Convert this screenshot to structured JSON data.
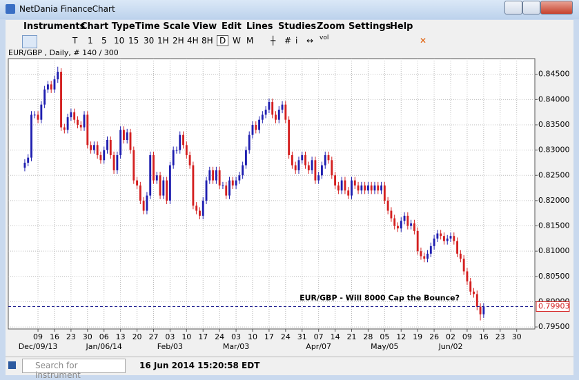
{
  "window": {
    "title": "NetDania FinanceChart"
  },
  "menu": [
    "Instruments",
    "Chart Type",
    "Time Scale",
    "View",
    "Edit",
    "Lines",
    "Studies",
    "Zoom",
    "Settings",
    "Help"
  ],
  "toolbar": {
    "timeframes": [
      "T",
      "1",
      "5",
      "10",
      "15",
      "30",
      "1H",
      "2H",
      "4H",
      "8H",
      "D",
      "W",
      "M"
    ],
    "active": "D",
    "info": "i",
    "volume": "vol"
  },
  "status": {
    "search_placeholder": "Search for instrument",
    "timestamp": "16 Jun 2014 15:20:58 EDT"
  },
  "chart_data": {
    "type": "candlestick",
    "title": "EUR/GBP , Daily, # 140 / 300",
    "annotation": "EUR/GBP - Will 8000 Cap  the Bounce?",
    "up_color": "#1f1fb0",
    "down_color": "#d42020",
    "grid": true,
    "xlim": [
      -5,
      154.5
    ],
    "ylim": [
      0.7946,
      0.8481
    ],
    "yticks": [
      {
        "value": 0.795,
        "label": "0.79500"
      },
      {
        "value": 0.8,
        "label": "0.80000"
      },
      {
        "value": 0.805,
        "label": "0.80500"
      },
      {
        "value": 0.81,
        "label": "0.81000"
      },
      {
        "value": 0.815,
        "label": "0.81500"
      },
      {
        "value": 0.82,
        "label": "0.82000"
      },
      {
        "value": 0.825,
        "label": "0.82500"
      },
      {
        "value": 0.83,
        "label": "0.83000"
      },
      {
        "value": 0.835,
        "label": "0.83500"
      },
      {
        "value": 0.84,
        "label": "0.84000"
      },
      {
        "value": 0.845,
        "label": "0.84500"
      }
    ],
    "last_value": {
      "value": 0.79903,
      "label": "0.79903"
    },
    "xticks": [
      {
        "value": 4,
        "label": "09"
      },
      {
        "value": 9,
        "label": "16"
      },
      {
        "value": 14,
        "label": "23"
      },
      {
        "value": 19,
        "label": "30"
      },
      {
        "value": 24,
        "label": "06"
      },
      {
        "value": 29,
        "label": "13"
      },
      {
        "value": 34,
        "label": "20"
      },
      {
        "value": 39,
        "label": "27"
      },
      {
        "value": 44,
        "label": "03"
      },
      {
        "value": 49,
        "label": "10"
      },
      {
        "value": 54,
        "label": "17"
      },
      {
        "value": 59,
        "label": "24"
      },
      {
        "value": 64,
        "label": "03"
      },
      {
        "value": 69,
        "label": "10"
      },
      {
        "value": 74,
        "label": "17"
      },
      {
        "value": 79,
        "label": "24"
      },
      {
        "value": 84,
        "label": "31"
      },
      {
        "value": 89,
        "label": "07"
      },
      {
        "value": 94,
        "label": "14"
      },
      {
        "value": 99,
        "label": "21"
      },
      {
        "value": 104,
        "label": "28"
      },
      {
        "value": 109,
        "label": "05"
      },
      {
        "value": 114,
        "label": "12"
      },
      {
        "value": 119,
        "label": "19"
      },
      {
        "value": 124,
        "label": "26"
      },
      {
        "value": 129,
        "label": "02"
      },
      {
        "value": 134,
        "label": "09"
      },
      {
        "value": 139,
        "label": "16"
      },
      {
        "value": 144,
        "label": "23"
      },
      {
        "value": 149,
        "label": "30"
      }
    ],
    "month_labels": [
      {
        "value": 4,
        "label": "Dec/09/13"
      },
      {
        "value": 24,
        "label": "Jan/06/14"
      },
      {
        "value": 44,
        "label": "Feb/03"
      },
      {
        "value": 64,
        "label": "Mar/03"
      },
      {
        "value": 89,
        "label": "Apr/07"
      },
      {
        "value": 109,
        "label": "May/05"
      },
      {
        "value": 129,
        "label": "Jun/02"
      }
    ],
    "candles": [
      [
        0.8265,
        0.8282,
        0.8258,
        0.8275
      ],
      [
        0.8275,
        0.8292,
        0.8268,
        0.8285
      ],
      [
        0.8285,
        0.8377,
        0.8278,
        0.837
      ],
      [
        0.837,
        0.8377,
        0.8363,
        0.837
      ],
      [
        0.837,
        0.8377,
        0.8353,
        0.836
      ],
      [
        0.836,
        0.8397,
        0.8353,
        0.839
      ],
      [
        0.839,
        0.8427,
        0.8383,
        0.842
      ],
      [
        0.842,
        0.8437,
        0.8413,
        0.843
      ],
      [
        0.843,
        0.8437,
        0.8413,
        0.842
      ],
      [
        0.842,
        0.8447,
        0.8413,
        0.844
      ],
      [
        0.844,
        0.8465,
        0.8433,
        0.8455
      ],
      [
        0.8455,
        0.8462,
        0.8338,
        0.8345
      ],
      [
        0.8345,
        0.8352,
        0.8333,
        0.834
      ],
      [
        0.834,
        0.8372,
        0.8333,
        0.8365
      ],
      [
        0.8365,
        0.8382,
        0.8358,
        0.8375
      ],
      [
        0.8375,
        0.8382,
        0.8353,
        0.836
      ],
      [
        0.836,
        0.8367,
        0.8343,
        0.835
      ],
      [
        0.835,
        0.8357,
        0.8338,
        0.8345
      ],
      [
        0.8345,
        0.8377,
        0.8338,
        0.837
      ],
      [
        0.837,
        0.8377,
        0.8303,
        0.831
      ],
      [
        0.831,
        0.8317,
        0.8293,
        0.83
      ],
      [
        0.83,
        0.8317,
        0.8293,
        0.831
      ],
      [
        0.831,
        0.8317,
        0.8283,
        0.829
      ],
      [
        0.829,
        0.8297,
        0.8273,
        0.828
      ],
      [
        0.828,
        0.8307,
        0.8273,
        0.83
      ],
      [
        0.83,
        0.8327,
        0.8293,
        0.832
      ],
      [
        0.832,
        0.8327,
        0.8283,
        0.829
      ],
      [
        0.829,
        0.8297,
        0.8253,
        0.826
      ],
      [
        0.826,
        0.8297,
        0.8253,
        0.829
      ],
      [
        0.829,
        0.8347,
        0.8283,
        0.834
      ],
      [
        0.834,
        0.8347,
        0.8313,
        0.832
      ],
      [
        0.832,
        0.8342,
        0.8313,
        0.8335
      ],
      [
        0.8335,
        0.8342,
        0.8293,
        0.83
      ],
      [
        0.83,
        0.8307,
        0.8233,
        0.824
      ],
      [
        0.824,
        0.8247,
        0.8223,
        0.823
      ],
      [
        0.823,
        0.8237,
        0.8193,
        0.82
      ],
      [
        0.82,
        0.8207,
        0.8173,
        0.818
      ],
      [
        0.818,
        0.8217,
        0.8173,
        0.821
      ],
      [
        0.821,
        0.8297,
        0.8203,
        0.829
      ],
      [
        0.829,
        0.8297,
        0.8233,
        0.824
      ],
      [
        0.824,
        0.8257,
        0.8233,
        0.825
      ],
      [
        0.825,
        0.8257,
        0.8203,
        0.821
      ],
      [
        0.821,
        0.8247,
        0.8203,
        0.824
      ],
      [
        0.824,
        0.8247,
        0.8193,
        0.82
      ],
      [
        0.82,
        0.8277,
        0.8193,
        0.827
      ],
      [
        0.827,
        0.8307,
        0.8263,
        0.83
      ],
      [
        0.83,
        0.8307,
        0.8293,
        0.83
      ],
      [
        0.83,
        0.8337,
        0.8293,
        0.833
      ],
      [
        0.833,
        0.8337,
        0.8303,
        0.831
      ],
      [
        0.831,
        0.8317,
        0.8283,
        0.829
      ],
      [
        0.829,
        0.8297,
        0.8263,
        0.827
      ],
      [
        0.827,
        0.8277,
        0.8183,
        0.819
      ],
      [
        0.819,
        0.8197,
        0.8173,
        0.818
      ],
      [
        0.818,
        0.8187,
        0.8163,
        0.817
      ],
      [
        0.817,
        0.8207,
        0.8163,
        0.82
      ],
      [
        0.82,
        0.8247,
        0.8193,
        0.824
      ],
      [
        0.824,
        0.8267,
        0.8233,
        0.826
      ],
      [
        0.826,
        0.8267,
        0.8233,
        0.824
      ],
      [
        0.824,
        0.8267,
        0.8233,
        0.826
      ],
      [
        0.826,
        0.8267,
        0.8223,
        0.823
      ],
      [
        0.823,
        0.8237,
        0.8223,
        0.823
      ],
      [
        0.823,
        0.8237,
        0.8203,
        0.821
      ],
      [
        0.821,
        0.8247,
        0.8203,
        0.824
      ],
      [
        0.824,
        0.8247,
        0.8223,
        0.823
      ],
      [
        0.823,
        0.8247,
        0.8223,
        0.824
      ],
      [
        0.824,
        0.8257,
        0.8233,
        0.825
      ],
      [
        0.825,
        0.8277,
        0.8243,
        0.827
      ],
      [
        0.827,
        0.8307,
        0.8263,
        0.83
      ],
      [
        0.83,
        0.8337,
        0.8293,
        0.833
      ],
      [
        0.833,
        0.8357,
        0.8323,
        0.835
      ],
      [
        0.835,
        0.8357,
        0.8333,
        0.834
      ],
      [
        0.834,
        0.8367,
        0.8333,
        0.836
      ],
      [
        0.836,
        0.8377,
        0.8353,
        0.837
      ],
      [
        0.837,
        0.8387,
        0.8363,
        0.838
      ],
      [
        0.838,
        0.8402,
        0.8373,
        0.8395
      ],
      [
        0.8395,
        0.8402,
        0.8363,
        0.837
      ],
      [
        0.837,
        0.8377,
        0.8353,
        0.836
      ],
      [
        0.836,
        0.8387,
        0.8353,
        0.838
      ],
      [
        0.838,
        0.8397,
        0.8373,
        0.839
      ],
      [
        0.839,
        0.8397,
        0.8353,
        0.836
      ],
      [
        0.836,
        0.8367,
        0.8283,
        0.829
      ],
      [
        0.829,
        0.8297,
        0.8263,
        0.827
      ],
      [
        0.827,
        0.8277,
        0.8253,
        0.826
      ],
      [
        0.826,
        0.8287,
        0.8253,
        0.828
      ],
      [
        0.828,
        0.8297,
        0.8273,
        0.829
      ],
      [
        0.829,
        0.8297,
        0.8263,
        0.827
      ],
      [
        0.827,
        0.8277,
        0.8253,
        0.826
      ],
      [
        0.826,
        0.8287,
        0.8253,
        0.828
      ],
      [
        0.828,
        0.8287,
        0.8233,
        0.824
      ],
      [
        0.824,
        0.8257,
        0.8233,
        0.825
      ],
      [
        0.825,
        0.8277,
        0.8243,
        0.827
      ],
      [
        0.827,
        0.8297,
        0.8263,
        0.829
      ],
      [
        0.829,
        0.8297,
        0.8273,
        0.828
      ],
      [
        0.828,
        0.8287,
        0.8243,
        0.825
      ],
      [
        0.825,
        0.8257,
        0.8223,
        0.823
      ],
      [
        0.823,
        0.8237,
        0.8213,
        0.822
      ],
      [
        0.822,
        0.8247,
        0.8213,
        0.824
      ],
      [
        0.824,
        0.8247,
        0.8213,
        0.822
      ],
      [
        0.822,
        0.8227,
        0.8203,
        0.821
      ],
      [
        0.821,
        0.8247,
        0.8203,
        0.824
      ],
      [
        0.824,
        0.8247,
        0.8223,
        0.823
      ],
      [
        0.823,
        0.8237,
        0.8213,
        0.822
      ],
      [
        0.822,
        0.8237,
        0.8213,
        0.823
      ],
      [
        0.823,
        0.8237,
        0.8213,
        0.822
      ],
      [
        0.822,
        0.8237,
        0.8213,
        0.823
      ],
      [
        0.823,
        0.8237,
        0.8213,
        0.822
      ],
      [
        0.822,
        0.8237,
        0.8213,
        0.823
      ],
      [
        0.823,
        0.8237,
        0.8213,
        0.822
      ],
      [
        0.822,
        0.8237,
        0.8213,
        0.823
      ],
      [
        0.823,
        0.8237,
        0.8193,
        0.82
      ],
      [
        0.82,
        0.8207,
        0.8173,
        0.818
      ],
      [
        0.818,
        0.8187,
        0.8158,
        0.8165
      ],
      [
        0.8165,
        0.8172,
        0.8143,
        0.815
      ],
      [
        0.815,
        0.8157,
        0.8138,
        0.8145
      ],
      [
        0.8145,
        0.8167,
        0.8138,
        0.816
      ],
      [
        0.816,
        0.8177,
        0.8153,
        0.817
      ],
      [
        0.817,
        0.8177,
        0.8143,
        0.815
      ],
      [
        0.815,
        0.8162,
        0.8143,
        0.8155
      ],
      [
        0.8155,
        0.8162,
        0.8133,
        0.814
      ],
      [
        0.814,
        0.8147,
        0.8093,
        0.81
      ],
      [
        0.81,
        0.8107,
        0.8083,
        0.809
      ],
      [
        0.809,
        0.8097,
        0.8078,
        0.8085
      ],
      [
        0.8085,
        0.8102,
        0.8078,
        0.8095
      ],
      [
        0.8095,
        0.8117,
        0.8088,
        0.811
      ],
      [
        0.811,
        0.8132,
        0.8103,
        0.8125
      ],
      [
        0.8125,
        0.8142,
        0.8118,
        0.8135
      ],
      [
        0.8135,
        0.8142,
        0.8123,
        0.813
      ],
      [
        0.813,
        0.8137,
        0.8113,
        0.812
      ],
      [
        0.812,
        0.8132,
        0.8113,
        0.8125
      ],
      [
        0.8125,
        0.8137,
        0.8118,
        0.813
      ],
      [
        0.813,
        0.8137,
        0.8113,
        0.812
      ],
      [
        0.812,
        0.8127,
        0.8088,
        0.8095
      ],
      [
        0.8095,
        0.8102,
        0.8078,
        0.8085
      ],
      [
        0.8085,
        0.8092,
        0.8053,
        0.806
      ],
      [
        0.806,
        0.8067,
        0.8033,
        0.804
      ],
      [
        0.804,
        0.8047,
        0.8013,
        0.802
      ],
      [
        0.802,
        0.8027,
        0.8008,
        0.8015
      ],
      [
        0.8015,
        0.8022,
        0.7983,
        0.799
      ],
      [
        0.799,
        0.7997,
        0.7963,
        0.7975
      ],
      [
        0.7975,
        0.7997,
        0.7968,
        0.799
      ]
    ]
  }
}
